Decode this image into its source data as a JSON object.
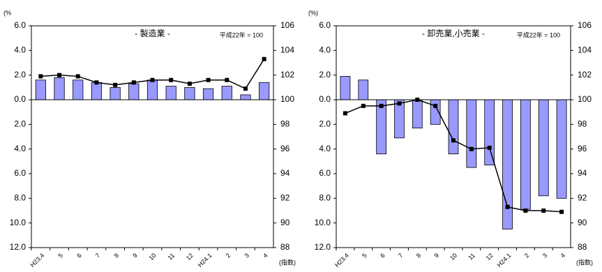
{
  "chart_data": [
    {
      "type": "bar",
      "title": "- 製造業 -",
      "annotation": "平成22年 = 100",
      "y_unit": "(%",
      "y2_unit": "(指数)",
      "categories": [
        "H23.4",
        "5",
        "6",
        "7",
        "8",
        "9",
        "10",
        "11",
        "12",
        "H24.1",
        "2",
        "3",
        "4"
      ],
      "series": [
        {
          "color": "#9999ff",
          "values": [
            1.6,
            1.8,
            1.6,
            1.4,
            1.0,
            1.3,
            1.6,
            1.1,
            1.0,
            0.9,
            1.1,
            0.4,
            1.4
          ]
        },
        {
          "axis": "y2",
          "color": "#000000",
          "values": [
            101.9,
            102.0,
            101.9,
            101.4,
            101.2,
            101.4,
            101.6,
            101.6,
            101.3,
            101.6,
            101.6,
            100.9,
            103.3
          ]
        }
      ],
      "ylim": [
        -12,
        6
      ],
      "yticks": [
        {
          "value": -12,
          "label": "12.0"
        },
        {
          "value": -10,
          "label": "10.0"
        },
        {
          "value": -8,
          "label": "8.0"
        },
        {
          "value": -6,
          "label": "6.0"
        },
        {
          "value": -4,
          "label": "4.0"
        },
        {
          "value": -2,
          "label": "2.0"
        },
        {
          "value": 0,
          "label": "0.0"
        },
        {
          "value": 2,
          "label": "2.0"
        },
        {
          "value": 4,
          "label": "4.0"
        },
        {
          "value": 6,
          "label": "6.0"
        }
      ],
      "y2lim": [
        88,
        106
      ],
      "y2ticks": [
        88,
        90,
        92,
        94,
        96,
        98,
        100,
        102,
        104,
        106
      ]
    },
    {
      "type": "bar",
      "title": "- 卸売業,小売業 -",
      "annotation": "平成22年 = 100",
      "y_unit": "(%)",
      "y2_unit": "(指数)",
      "categories": [
        "H23.4",
        "5",
        "6",
        "7",
        "8",
        "9",
        "10",
        "11",
        "12",
        "H24.1",
        "2",
        "3",
        "4"
      ],
      "series": [
        {
          "color": "#9999ff",
          "values": [
            1.9,
            1.6,
            -4.4,
            -3.1,
            -2.3,
            -2.0,
            -4.4,
            -5.5,
            -5.3,
            -10.5,
            -8.9,
            -7.8,
            -8.0
          ]
        },
        {
          "axis": "y2",
          "color": "#000000",
          "values": [
            98.9,
            99.5,
            99.5,
            99.7,
            100.0,
            99.5,
            96.7,
            96.0,
            96.1,
            91.3,
            91.0,
            91.0,
            90.9
          ]
        }
      ],
      "ylim": [
        -12,
        6
      ],
      "yticks": [
        {
          "value": -12,
          "label": "12.0"
        },
        {
          "value": -10,
          "label": "10.0"
        },
        {
          "value": -8,
          "label": "8.0"
        },
        {
          "value": -6,
          "label": "6.0"
        },
        {
          "value": -4,
          "label": "4.0"
        },
        {
          "value": -2,
          "label": "2.0"
        },
        {
          "value": 0,
          "label": "0.0"
        },
        {
          "value": 2,
          "label": "2.0"
        },
        {
          "value": 4,
          "label": "4.0"
        },
        {
          "value": 6,
          "label": "6.0"
        }
      ],
      "y2lim": [
        88,
        106
      ],
      "y2ticks": [
        88,
        90,
        92,
        94,
        96,
        98,
        100,
        102,
        104,
        106
      ]
    }
  ]
}
